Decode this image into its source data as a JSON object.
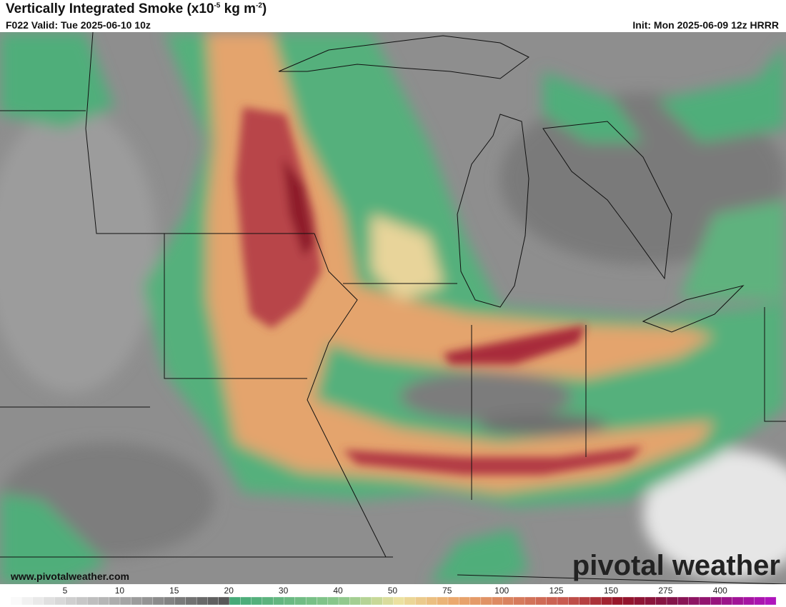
{
  "header": {
    "title": [
      "Vertically Integrated Smoke (x10",
      "-5",
      " kg m",
      "-2",
      ")"
    ],
    "valid": "F022 Valid: Tue 2025-06-10 10z",
    "init": "Init: Mon 2025-06-09 12z HRRR"
  },
  "footer": {
    "website": "www.pivotalweather.com",
    "watermark": "pivotal weather"
  },
  "colorbar": {
    "ticks": [
      5,
      10,
      15,
      20,
      30,
      40,
      50,
      75,
      100,
      125,
      150,
      275,
      400
    ]
  }
}
